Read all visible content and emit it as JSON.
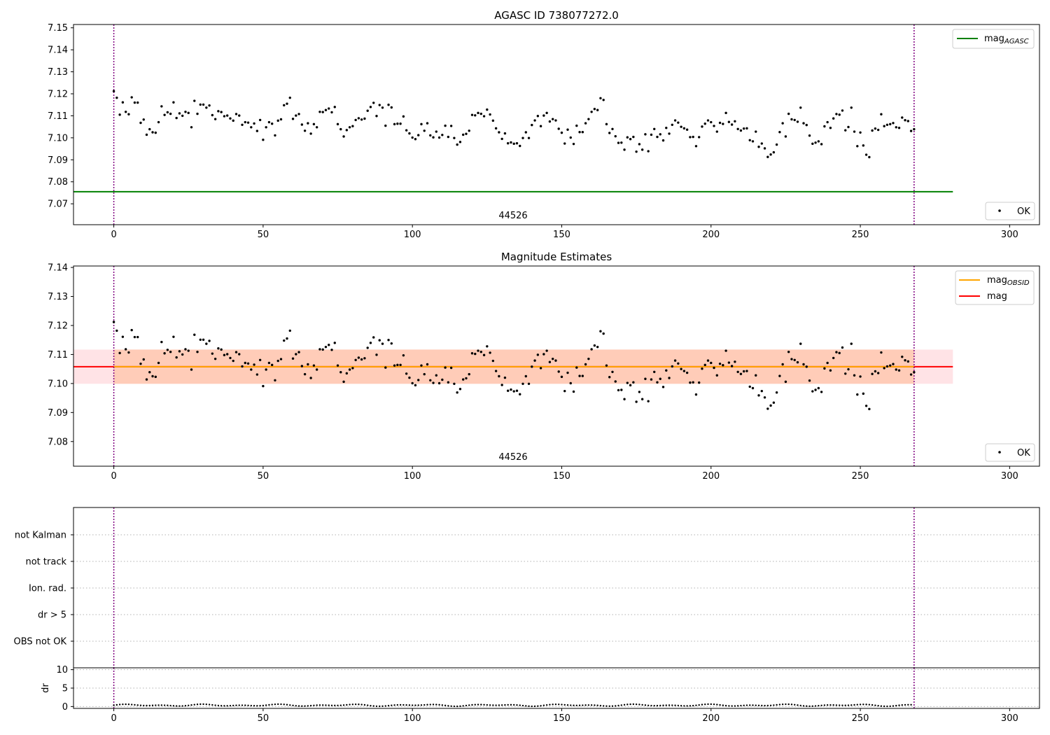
{
  "chart_data": [
    {
      "type": "scatter",
      "title": "AGASC ID 738077272.0",
      "xlim": [
        -13.5,
        310
      ],
      "ylim": [
        7.0605,
        7.1515
      ],
      "x_ticks": [
        0,
        50,
        100,
        150,
        200,
        250,
        300
      ],
      "y_ticks": [
        7.07,
        7.08,
        7.09,
        7.1,
        7.11,
        7.12,
        7.13,
        7.14,
        7.15
      ],
      "y_tick_labels": [
        "7.07",
        "7.08",
        "7.09",
        "7.10",
        "7.11",
        "7.12",
        "7.13",
        "7.14",
        "7.15"
      ],
      "vlines": [
        0,
        268
      ],
      "annotation": {
        "text": "44526",
        "x": 134
      },
      "lines": [
        {
          "name": "mag",
          "subscript": "AGASC",
          "value": 7.0755,
          "x_range": [
            -13.5,
            281
          ],
          "color": "#008000"
        }
      ],
      "legend": [
        {
          "kind": "line",
          "label": "mag",
          "subscript": "AGASC",
          "color": "#008000",
          "position": "top-right"
        }
      ],
      "points_legend": {
        "label": "OK",
        "position": "bottom-right"
      },
      "series": [
        {
          "name": "OK",
          "x_start": 0,
          "x_step": 1,
          "values": [
            7.1212,
            7.1182,
            7.1105,
            7.1161,
            7.1118,
            7.1107,
            7.1184,
            7.116,
            7.116,
            7.1068,
            7.1083,
            7.1014,
            7.1039,
            7.1025,
            7.1023,
            7.1071,
            7.1143,
            7.1104,
            7.1116,
            7.1109,
            7.1161,
            7.109,
            7.1111,
            7.11,
            7.1118,
            7.1113,
            7.1048,
            7.1168,
            7.1109,
            7.1151,
            7.1151,
            7.1137,
            7.1147,
            7.1103,
            7.1085,
            7.1121,
            7.1117,
            7.1098,
            7.1101,
            7.1088,
            7.1078,
            7.1108,
            7.1101,
            7.1059,
            7.1071,
            7.1069,
            7.1048,
            7.1065,
            7.1031,
            7.1081,
            7.0991,
            7.1048,
            7.1071,
            7.1064,
            7.1011,
            7.1078,
            7.1084,
            7.1148,
            7.1155,
            7.1182,
            7.1086,
            7.1101,
            7.1108,
            7.106,
            7.1032,
            7.1066,
            7.1019,
            7.1062,
            7.1048,
            7.1118,
            7.1117,
            7.1126,
            7.1133,
            7.1116,
            7.114,
            7.1062,
            7.1039,
            7.1006,
            7.1035,
            7.1048,
            7.1053,
            7.1081,
            7.1089,
            7.1083,
            7.1087,
            7.1123,
            7.114,
            7.1159,
            7.1099,
            7.1149,
            7.1137,
            7.1055,
            7.115,
            7.1138,
            7.1062,
            7.1064,
            7.1064,
            7.1097,
            7.1034,
            7.102,
            7.1001,
            7.0994,
            7.1012,
            7.1062,
            7.1032,
            7.1066,
            7.1011,
            7.1002,
            7.1028,
            7.1001,
            7.1013,
            7.1055,
            7.1004,
            7.1054,
            7.0999,
            7.0969,
            7.0981,
            7.1014,
            7.1018,
            7.1032,
            7.1104,
            7.1102,
            7.1113,
            7.1109,
            7.1098,
            7.1128,
            7.1106,
            7.1078,
            7.1043,
            7.1025,
            7.0995,
            7.102,
            7.0975,
            7.0979,
            7.0973,
            7.0975,
            7.0963,
            7.0999,
            7.1025,
            7.0999,
            7.1058,
            7.1079,
            7.1099,
            7.1053,
            7.1101,
            7.1113,
            7.1074,
            7.1085,
            7.1079,
            7.1041,
            7.1023,
            7.0974,
            7.1037,
            7.1001,
            7.0972,
            7.1055,
            7.1026,
            7.1026,
            7.1066,
            7.1085,
            7.1118,
            7.1131,
            7.1126,
            7.118,
            7.1172,
            7.1062,
            7.1022,
            7.104,
            7.1007,
            7.0977,
            7.0978,
            7.0946,
            7.1002,
            7.0994,
            7.1004,
            7.0937,
            7.0971,
            7.0946,
            7.1016,
            7.0939,
            7.1014,
            7.104,
            7.1004,
            7.1016,
            7.0988,
            7.1045,
            7.1019,
            7.1059,
            7.1079,
            7.1069,
            7.105,
            7.1043,
            7.1037,
            7.1003,
            7.1004,
            7.0962,
            7.1003,
            7.1051,
            7.1064,
            7.1079,
            7.1071,
            7.1054,
            7.1028,
            7.1068,
            7.1063,
            7.1113,
            7.1072,
            7.106,
            7.1075,
            7.104,
            7.1033,
            7.1042,
            7.1043,
            7.0989,
            7.0984,
            7.1028,
            7.0959,
            7.0974,
            7.0952,
            7.0913,
            7.0924,
            7.0934,
            7.0969,
            7.1026,
            7.1066,
            7.1006,
            7.1109,
            7.1084,
            7.1081,
            7.1073,
            7.1137,
            7.1066,
            7.1058,
            7.101,
            7.0973,
            7.0978,
            7.0984,
            7.0971,
            7.1052,
            7.1071,
            7.1045,
            7.1088,
            7.1108,
            7.1105,
            7.1124,
            7.1034,
            7.1049,
            7.1137,
            7.1028,
            7.0962,
            7.1024,
            7.0965,
            7.0923,
            7.0912,
            7.1033,
            7.1042,
            7.1036,
            7.1107,
            7.1053,
            7.1059,
            7.1062,
            7.1067,
            7.1048,
            7.1045,
            7.1092,
            7.108,
            7.1076,
            7.1031,
            7.1039
          ]
        }
      ]
    },
    {
      "type": "scatter",
      "title": "Magnitude Estimates",
      "xlim": [
        -13.5,
        310
      ],
      "ylim": [
        7.0715,
        7.1405
      ],
      "x_ticks": [
        0,
        50,
        100,
        150,
        200,
        250,
        300
      ],
      "y_ticks": [
        7.08,
        7.09,
        7.1,
        7.11,
        7.12,
        7.13,
        7.14
      ],
      "y_tick_labels": [
        "7.08",
        "7.09",
        "7.10",
        "7.11",
        "7.12",
        "7.13",
        "7.14"
      ],
      "vlines": [
        0,
        268
      ],
      "annotation": {
        "text": "44526",
        "x": 134
      },
      "bands": [
        {
          "y_range": [
            7.0999,
            7.1117
          ],
          "x_range": [
            -13.5,
            281
          ],
          "color": "#ffb0b8",
          "opacity": 0.35
        },
        {
          "y_range": [
            7.0999,
            7.1117
          ],
          "x_range": [
            0,
            268
          ],
          "color": "#ffa060",
          "opacity": 0.35
        }
      ],
      "lines": [
        {
          "name": "mag",
          "value": 7.1058,
          "x_range": [
            -13.5,
            281
          ],
          "color": "#ff0000"
        },
        {
          "name": "mag",
          "subscript": "OBSID",
          "value": 7.1058,
          "x_range": [
            0,
            268
          ],
          "color": "#ffa500"
        }
      ],
      "legend": [
        {
          "kind": "line",
          "label": "mag",
          "subscript": "OBSID",
          "color": "#ffa500",
          "position": "top-right"
        },
        {
          "kind": "line",
          "label": "mag",
          "subscript": "",
          "color": "#ff0000",
          "position": "top-right"
        }
      ],
      "points_legend": {
        "label": "OK",
        "position": "bottom-right"
      },
      "series_ref": 0
    },
    {
      "type": "categorical-flags",
      "xlim": [
        -13.5,
        310
      ],
      "categories": [
        "not Kalman",
        "not track",
        "Ion. rad.",
        "dr > 5",
        "OBS not OK"
      ],
      "vlines": [
        0,
        268
      ],
      "grid": "dotted"
    },
    {
      "type": "scatter",
      "ylabel": "dr",
      "xlim": [
        -13.5,
        310
      ],
      "ylim": [
        -0.5,
        10.5
      ],
      "x_ticks": [
        0,
        50,
        100,
        150,
        200,
        250,
        300
      ],
      "x_tick_labels": [
        "0",
        "50",
        "100",
        "150",
        "200",
        "250",
        "300"
      ],
      "y_ticks": [
        0,
        5,
        10
      ],
      "y_tick_labels": [
        "0",
        "5",
        "10"
      ],
      "vlines": [
        0,
        268
      ],
      "grid": "dotted",
      "series": [
        {
          "x_start": 0,
          "x_step": 1,
          "count": 268,
          "typical_value": 0.3,
          "range": [
            0.05,
            0.65
          ]
        }
      ]
    }
  ]
}
